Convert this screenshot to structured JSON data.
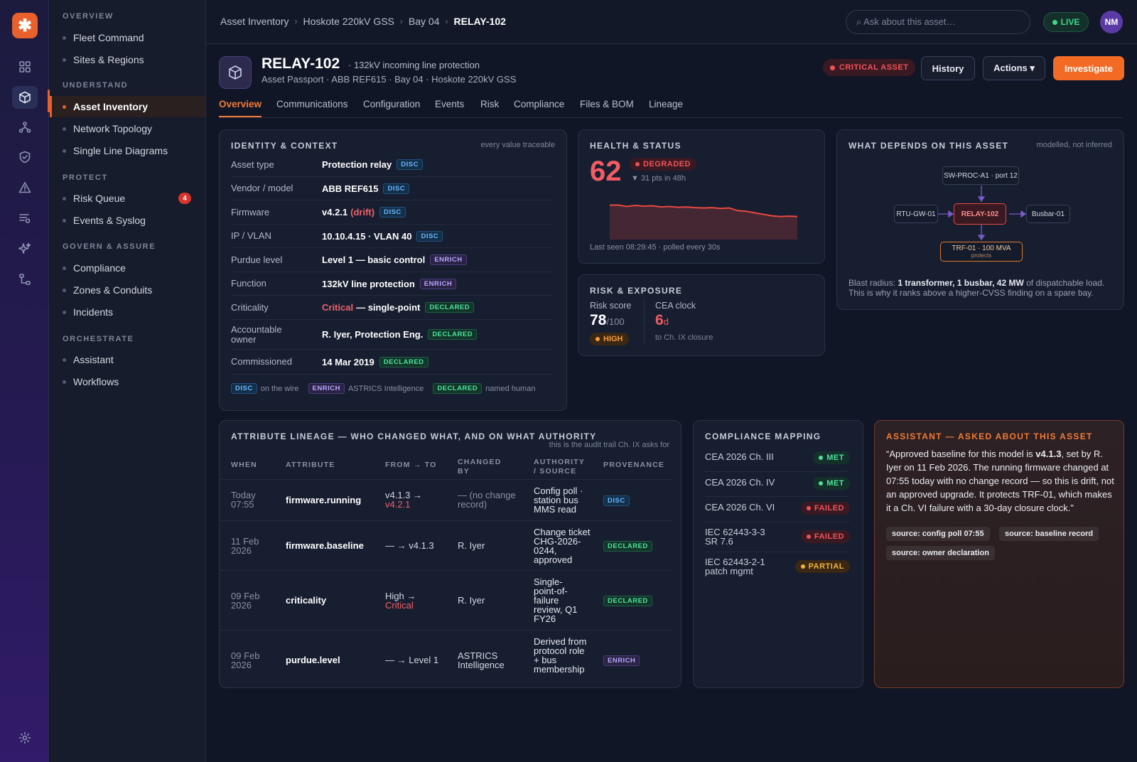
{
  "app": {
    "logo_glyph": "✱",
    "accent": "#f26a24"
  },
  "rail": {
    "icons": [
      "grid-icon",
      "cube-icon",
      "topology-icon",
      "shield-icon",
      "warning-icon",
      "list-icon",
      "sparkle-icon",
      "workflow-icon",
      "settings-icon"
    ]
  },
  "sidebar": {
    "groups": [
      {
        "label": "OVERVIEW",
        "items": [
          {
            "label": "Fleet Command"
          },
          {
            "label": "Sites & Regions"
          }
        ]
      },
      {
        "label": "UNDERSTAND",
        "items": [
          {
            "label": "Asset Inventory"
          },
          {
            "label": "Network Topology"
          },
          {
            "label": "Single Line Diagrams"
          }
        ]
      },
      {
        "label": "PROTECT",
        "items": [
          {
            "label": "Risk Queue",
            "badge": "4"
          },
          {
            "label": "Events & Syslog"
          }
        ]
      },
      {
        "label": "GOVERN & ASSURE",
        "items": [
          {
            "label": "Compliance"
          },
          {
            "label": "Zones & Conduits"
          },
          {
            "label": "Incidents"
          }
        ]
      },
      {
        "label": "ORCHESTRATE",
        "items": [
          {
            "label": "Assistant"
          },
          {
            "label": "Workflows"
          }
        ]
      }
    ]
  },
  "topbar": {
    "breadcrumbs": [
      "Asset Inventory",
      "Hoskote 220kV GSS",
      "Bay 04",
      "RELAY-102"
    ],
    "search_placeholder": "⌕ Ask about this asset…",
    "live_label": "LIVE",
    "avatar": "NM"
  },
  "asset": {
    "title": "RELAY-102",
    "subtitle": "· 132kV incoming line protection",
    "passport": "Asset Passport · ABB REF615 · Bay 04 · Hoskote 220kV GSS",
    "critical_badge": "CRITICAL ASSET",
    "buttons": {
      "history": "History",
      "actions": "Actions ▾",
      "investigate": "Investigate"
    }
  },
  "tabs": [
    "Overview",
    "Communications",
    "Configuration",
    "Events",
    "Risk",
    "Compliance",
    "Files & BOM",
    "Lineage"
  ],
  "identity": {
    "title": "IDENTITY & CONTEXT",
    "note": "every value traceable",
    "rows": [
      {
        "key": "Asset type",
        "value": "Protection relay",
        "tag": "DISC"
      },
      {
        "key": "Vendor / model",
        "value": "ABB REF615",
        "tag": "DISC"
      },
      {
        "key": "Firmware",
        "value": "v4.2.1",
        "value_red": "(drift)",
        "tag": "DISC"
      },
      {
        "key": "IP / VLAN",
        "value": "10.10.4.15 · VLAN 40",
        "tag": "DISC"
      },
      {
        "key": "Purdue level",
        "value": "Level 1 — basic control",
        "tag": "ENRICH"
      },
      {
        "key": "Function",
        "value": "132kV line protection",
        "tag": "ENRICH"
      },
      {
        "key": "Criticality",
        "value_red": "Critical",
        "value": "— single-point",
        "tag": "DECLARED"
      },
      {
        "key": "Accountable owner",
        "value": "R. Iyer, Protection Eng.",
        "tag": "DECLARED"
      },
      {
        "key": "Commissioned",
        "value": "14 Mar 2019",
        "tag": "DECLARED"
      }
    ],
    "legend": [
      {
        "tag": "DISC",
        "text": "on the wire"
      },
      {
        "tag": "ENRICH",
        "text": "ASTRICS Intelligence"
      },
      {
        "tag": "DECLARED",
        "text": "named human"
      }
    ]
  },
  "health": {
    "title": "HEALTH & STATUS",
    "score": "62",
    "status": "DEGRADED",
    "delta": "▼ 31 pts in 48h",
    "last_seen": "Last seen 08:29:45 · polled every 30s",
    "trend": [
      93,
      93,
      89,
      92,
      90,
      91,
      88,
      89,
      87,
      88,
      86,
      85,
      86,
      84,
      85,
      78,
      76,
      72,
      68,
      64,
      62,
      63,
      62
    ],
    "trend_ylim": [
      0,
      100
    ],
    "trend_color": "#e8483f"
  },
  "risk": {
    "title": "RISK & EXPOSURE",
    "score_label": "Risk score",
    "score": "78",
    "score_max": "/100",
    "level": "HIGH",
    "clock_label": "CEA clock",
    "clock": "6",
    "clock_unit": "d",
    "clock_note": "to Ch. IX closure"
  },
  "depends": {
    "title": "WHAT DEPENDS ON THIS ASSET",
    "note": "modelled, not inferred",
    "nodes": {
      "up": "SW-PROC-A1 · port 12",
      "left": "RTU-GW-01",
      "center": "RELAY-102",
      "right": "Busbar-01",
      "down": "TRF-01 · 100 MVA",
      "down_sub": "protects"
    },
    "blast_prefix": "Blast radius:",
    "blast_bold": "1 transformer, 1 busbar, 42 MW",
    "blast_suffix": "of dispatchable load. This is why it ranks above a higher-CVSS finding on a spare bay."
  },
  "lineage": {
    "title": "ATTRIBUTE LINEAGE — WHO CHANGED WHAT, AND ON WHAT AUTHORITY",
    "note": "this is the audit trail Ch. IX asks for",
    "headers": {
      "when": "WHEN",
      "attribute": "ATTRIBUTE",
      "from_to": "FROM → TO",
      "changed_by": "CHANGED BY",
      "authority": "AUTHORITY / SOURCE",
      "provenance": "PROVENANCE"
    },
    "rows": [
      {
        "when": "Today 07:55",
        "attribute": "firmware.running",
        "from": "v4.1.3 →",
        "to": "v4.2.1",
        "to_red": true,
        "by": "— (no change record)",
        "by_muted": true,
        "authority": "Config poll · station bus MMS read",
        "tag": "DISC"
      },
      {
        "when": "11 Feb 2026",
        "attribute": "firmware.baseline",
        "from": "— → v4.1.3",
        "to": "",
        "by": "R. Iyer",
        "authority": "Change ticket CHG-2026-0244, approved",
        "tag": "DECLARED"
      },
      {
        "when": "09 Feb 2026",
        "attribute": "criticality",
        "from": "High →",
        "to": "Critical",
        "to_red": true,
        "by": "R. Iyer",
        "authority": "Single-point-of-failure review, Q1 FY26",
        "tag": "DECLARED"
      },
      {
        "when": "09 Feb 2026",
        "attribute": "purdue.level",
        "from": "— → Level 1",
        "to": "",
        "by": "ASTRICS Intelligence",
        "authority": "Derived from protocol role + bus membership",
        "tag": "ENRICH"
      }
    ]
  },
  "compliance": {
    "title": "COMPLIANCE MAPPING",
    "rows": [
      {
        "label": "CEA 2026 Ch. III",
        "status": "MET"
      },
      {
        "label": "CEA 2026 Ch. IV",
        "status": "MET"
      },
      {
        "label": "CEA 2026 Ch. VI",
        "status": "FAILED"
      },
      {
        "label": "IEC 62443-3-3 SR 7.6",
        "status": "FAILED"
      },
      {
        "label": "IEC 62443-2-1 patch mgmt",
        "status": "PARTIAL"
      }
    ]
  },
  "assistant": {
    "title": "ASSISTANT — ASKED ABOUT THIS ASSET",
    "quote_a": "“Approved baseline for this model is ",
    "quote_bold": "v4.1.3",
    "quote_b": ", set by R. Iyer on 11 Feb 2026. The running firmware changed at 07:55 today with no change record — so this is drift, not an approved upgrade. It protects TRF-01, which makes it a Ch. VI failure with a 30-day closure clock.”",
    "sources": [
      "source: config poll 07:55",
      "source: baseline record",
      "source: owner declaration"
    ]
  }
}
